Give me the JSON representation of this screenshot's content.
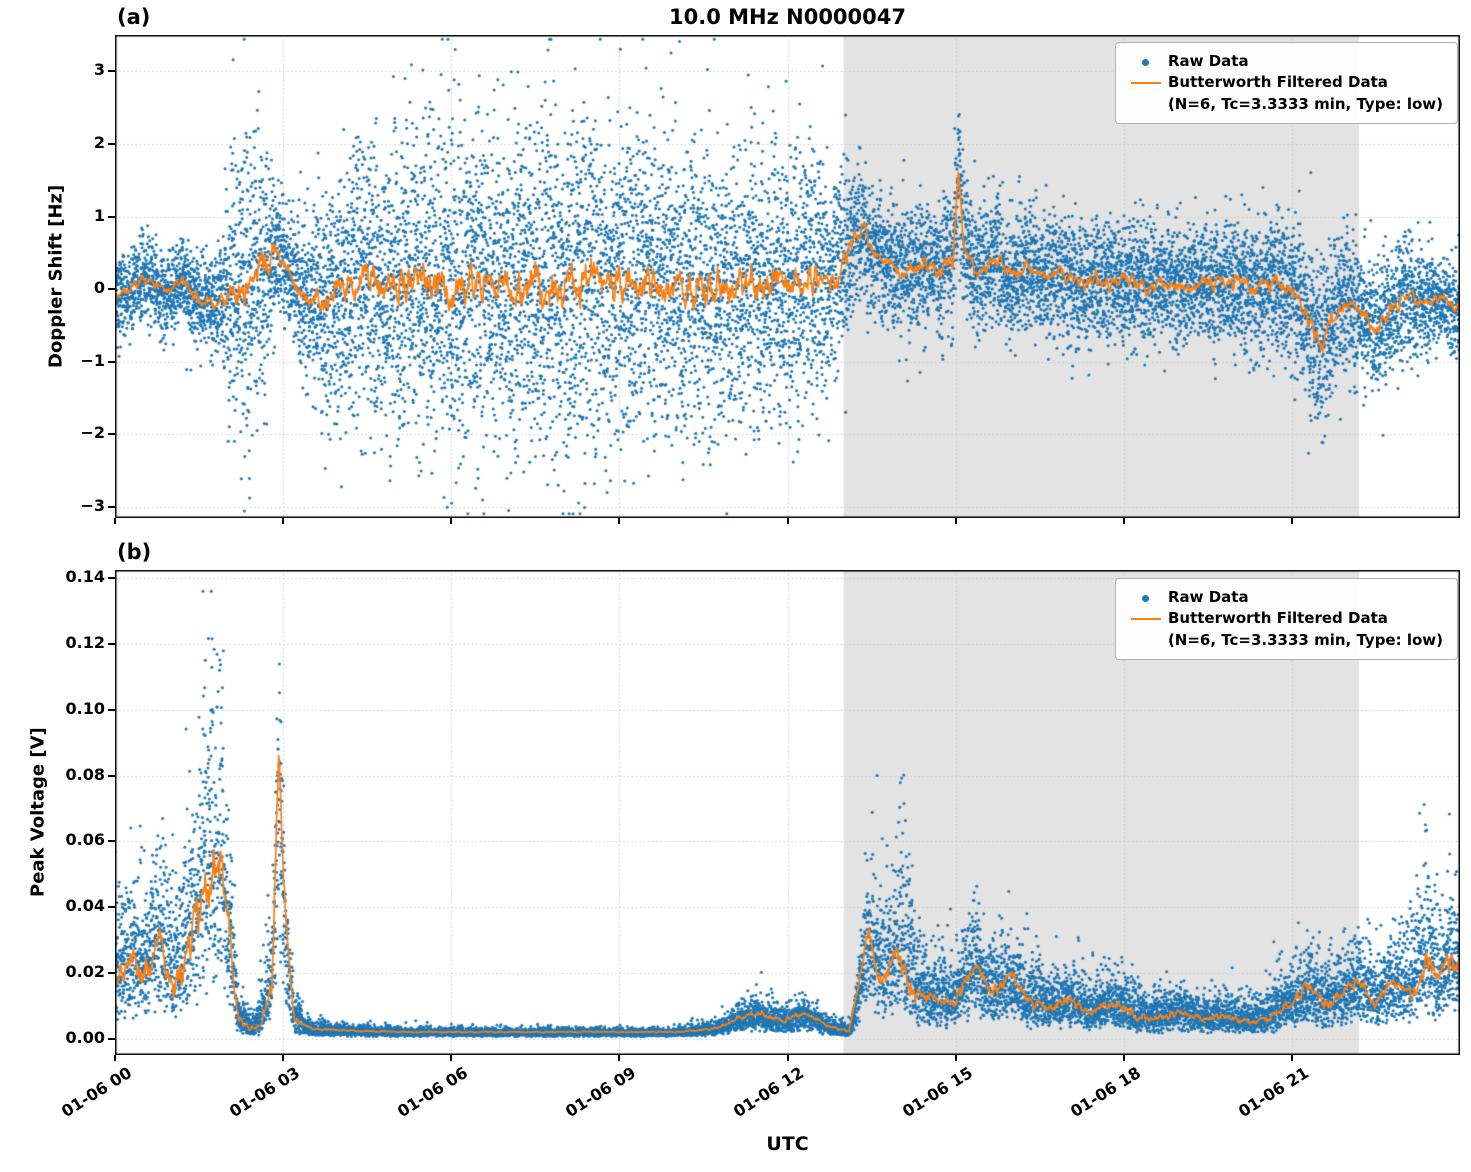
{
  "title": "10.0 MHz N0000047",
  "legend": {
    "raw_label": "Raw Data",
    "filtered_label_line1": "Butterworth Filtered Data",
    "filtered_label_line2": "(N=6, Tc=3.3333 min, Type: low)"
  },
  "colors": {
    "raw": "#1f77b4",
    "filtered": "#ff7f0e",
    "shade": "#e3e3e3",
    "grid": "#c9c9c9",
    "frame": "#000000"
  },
  "chart_data": {
    "type": "scatter+line",
    "x_axis": {
      "label": "UTC",
      "unit": "hours since 01-06 00:00",
      "xlim": [
        0,
        24
      ],
      "ticks": [
        {
          "t": 0,
          "label": "01-06 00"
        },
        {
          "t": 3,
          "label": "01-06 03"
        },
        {
          "t": 6,
          "label": "01-06 06"
        },
        {
          "t": 9,
          "label": "01-06 09"
        },
        {
          "t": 12,
          "label": "01-06 12"
        },
        {
          "t": 15,
          "label": "01-06 15"
        },
        {
          "t": 18,
          "label": "01-06 18"
        },
        {
          "t": 21,
          "label": "01-06 21"
        }
      ]
    },
    "shaded_region_hours": [
      13.0,
      22.2
    ],
    "grid": "dotted",
    "legend_position": "upper right",
    "panels": [
      {
        "id": "a",
        "panel_label": "(a)",
        "ylabel": "Doppler Shift [Hz]",
        "ylim": [
          -3.15,
          3.5
        ],
        "yticks": [
          {
            "v": 3,
            "label": "3"
          },
          {
            "v": 2,
            "label": "2"
          },
          {
            "v": 1,
            "label": "1"
          },
          {
            "v": 0,
            "label": "0"
          },
          {
            "v": -1,
            "label": "−1"
          },
          {
            "v": -2,
            "label": "−2"
          },
          {
            "v": -3,
            "label": "−3"
          }
        ],
        "model": "symmetric",
        "n_points": 14000,
        "filtered_control": [
          [
            0,
            -0.15
          ],
          [
            0.3,
            0.05
          ],
          [
            0.6,
            0.15
          ],
          [
            0.9,
            -0.05
          ],
          [
            1.2,
            0.1
          ],
          [
            1.5,
            -0.15
          ],
          [
            1.8,
            -0.2
          ],
          [
            2.1,
            0
          ],
          [
            2.4,
            0.15
          ],
          [
            2.7,
            0.35
          ],
          [
            2.9,
            0.5
          ],
          [
            3.1,
            0.25
          ],
          [
            3.4,
            -0.1
          ],
          [
            3.7,
            -0.2
          ],
          [
            4,
            -0.05
          ],
          [
            4.5,
            0.1
          ],
          [
            5,
            0
          ],
          [
            5.5,
            0.1
          ],
          [
            6,
            -0.05
          ],
          [
            6.5,
            0.1
          ],
          [
            7,
            0
          ],
          [
            7.5,
            0.1
          ],
          [
            8,
            0
          ],
          [
            8.5,
            0.1
          ],
          [
            9,
            0.05
          ],
          [
            9.5,
            0.1
          ],
          [
            10,
            0
          ],
          [
            10.5,
            0.05
          ],
          [
            11,
            0
          ],
          [
            11.5,
            0.1
          ],
          [
            12,
            0.05
          ],
          [
            12.5,
            0.1
          ],
          [
            12.9,
            0.2
          ],
          [
            13.2,
            0.7
          ],
          [
            13.35,
            0.9
          ],
          [
            13.5,
            0.55
          ],
          [
            13.8,
            0.35
          ],
          [
            14.1,
            0.25
          ],
          [
            14.4,
            0.35
          ],
          [
            14.7,
            0.25
          ],
          [
            14.95,
            0.4
          ],
          [
            15.05,
            1.55
          ],
          [
            15.15,
            0.5
          ],
          [
            15.4,
            0.2
          ],
          [
            15.7,
            0.45
          ],
          [
            16,
            0.15
          ],
          [
            16.3,
            0.35
          ],
          [
            16.6,
            0.1
          ],
          [
            16.9,
            0.25
          ],
          [
            17.2,
            0.05
          ],
          [
            17.5,
            0.15
          ],
          [
            17.8,
            0.05
          ],
          [
            18.1,
            0.15
          ],
          [
            18.4,
            0
          ],
          [
            18.7,
            0.1
          ],
          [
            19,
            0
          ],
          [
            19.3,
            0.1
          ],
          [
            19.6,
            0.05
          ],
          [
            20,
            0.1
          ],
          [
            20.4,
            0
          ],
          [
            20.7,
            0.1
          ],
          [
            21,
            -0.05
          ],
          [
            21.3,
            -0.4
          ],
          [
            21.5,
            -0.8
          ],
          [
            21.7,
            -0.5
          ],
          [
            21.9,
            -0.2
          ],
          [
            22.2,
            -0.3
          ],
          [
            22.5,
            -0.6
          ],
          [
            22.8,
            -0.25
          ],
          [
            23.1,
            -0.1
          ],
          [
            23.4,
            -0.2
          ],
          [
            23.7,
            -0.1
          ],
          [
            24,
            -0.3
          ]
        ],
        "sigma_control": [
          [
            0,
            0.28
          ],
          [
            0.5,
            0.3
          ],
          [
            1,
            0.28
          ],
          [
            1.5,
            0.3
          ],
          [
            1.9,
            0.35
          ],
          [
            2.1,
            0.9
          ],
          [
            2.4,
            1.15
          ],
          [
            2.7,
            0.9
          ],
          [
            2.9,
            0.45
          ],
          [
            3.1,
            0.4
          ],
          [
            3.4,
            0.6
          ],
          [
            3.8,
            0.85
          ],
          [
            4.2,
            1.0
          ],
          [
            5,
            1.05
          ],
          [
            6,
            1.15
          ],
          [
            7,
            1.1
          ],
          [
            8,
            1.15
          ],
          [
            9,
            1.1
          ],
          [
            10,
            1.05
          ],
          [
            11,
            1.0
          ],
          [
            12,
            0.9
          ],
          [
            12.6,
            0.85
          ],
          [
            13,
            0.6
          ],
          [
            13.4,
            0.45
          ],
          [
            13.8,
            0.4
          ],
          [
            14.2,
            0.45
          ],
          [
            14.6,
            0.4
          ],
          [
            15,
            0.5
          ],
          [
            15.5,
            0.45
          ],
          [
            16,
            0.42
          ],
          [
            16.5,
            0.4
          ],
          [
            17,
            0.42
          ],
          [
            17.5,
            0.4
          ],
          [
            18,
            0.45
          ],
          [
            18.5,
            0.4
          ],
          [
            19,
            0.42
          ],
          [
            19.5,
            0.4
          ],
          [
            20,
            0.45
          ],
          [
            20.5,
            0.45
          ],
          [
            21,
            0.5
          ],
          [
            21.5,
            0.6
          ],
          [
            22,
            0.5
          ],
          [
            22.5,
            0.45
          ],
          [
            23,
            0.4
          ],
          [
            23.5,
            0.32
          ],
          [
            24,
            0.3
          ]
        ]
      },
      {
        "id": "b",
        "panel_label": "(b)",
        "ylabel": "Peak Voltage [V]",
        "ylim": [
          -0.005,
          0.1425
        ],
        "yticks": [
          {
            "v": 0.14,
            "label": "0.14"
          },
          {
            "v": 0.12,
            "label": "0.12"
          },
          {
            "v": 0.1,
            "label": "0.10"
          },
          {
            "v": 0.08,
            "label": "0.08"
          },
          {
            "v": 0.06,
            "label": "0.06"
          },
          {
            "v": 0.04,
            "label": "0.04"
          },
          {
            "v": 0.02,
            "label": "0.02"
          },
          {
            "v": 0.0,
            "label": "0.00"
          }
        ],
        "model": "positive",
        "n_points": 13000,
        "filtered_control": [
          [
            0,
            0.017
          ],
          [
            0.3,
            0.025
          ],
          [
            0.5,
            0.018
          ],
          [
            0.8,
            0.03
          ],
          [
            1,
            0.014
          ],
          [
            1.2,
            0.02
          ],
          [
            1.5,
            0.04
          ],
          [
            1.7,
            0.048
          ],
          [
            1.9,
            0.055
          ],
          [
            2.05,
            0.03
          ],
          [
            2.2,
            0.006
          ],
          [
            2.4,
            0.003
          ],
          [
            2.6,
            0.004
          ],
          [
            2.8,
            0.015
          ],
          [
            2.92,
            0.085
          ],
          [
            3.05,
            0.035
          ],
          [
            3.2,
            0.006
          ],
          [
            3.5,
            0.003
          ],
          [
            4,
            0.0025
          ],
          [
            5,
            0.002
          ],
          [
            6,
            0.002
          ],
          [
            7,
            0.002
          ],
          [
            8,
            0.002
          ],
          [
            9,
            0.002
          ],
          [
            10,
            0.002
          ],
          [
            10.7,
            0.003
          ],
          [
            11.1,
            0.006
          ],
          [
            11.5,
            0.008
          ],
          [
            11.9,
            0.005
          ],
          [
            12.3,
            0.008
          ],
          [
            12.7,
            0.004
          ],
          [
            13.1,
            0.002
          ],
          [
            13.45,
            0.033
          ],
          [
            13.65,
            0.018
          ],
          [
            13.95,
            0.028
          ],
          [
            14.25,
            0.014
          ],
          [
            14.6,
            0.012
          ],
          [
            15,
            0.011
          ],
          [
            15.35,
            0.024
          ],
          [
            15.65,
            0.013
          ],
          [
            15.95,
            0.02
          ],
          [
            16.3,
            0.011
          ],
          [
            16.7,
            0.009
          ],
          [
            17,
            0.012
          ],
          [
            17.4,
            0.008
          ],
          [
            17.8,
            0.011
          ],
          [
            18.2,
            0.007
          ],
          [
            18.6,
            0.006
          ],
          [
            19,
            0.008
          ],
          [
            19.4,
            0.006
          ],
          [
            19.8,
            0.007
          ],
          [
            20.2,
            0.005
          ],
          [
            20.6,
            0.006
          ],
          [
            21,
            0.011
          ],
          [
            21.3,
            0.016
          ],
          [
            21.6,
            0.01
          ],
          [
            21.9,
            0.014
          ],
          [
            22.2,
            0.018
          ],
          [
            22.5,
            0.011
          ],
          [
            22.8,
            0.018
          ],
          [
            23.1,
            0.013
          ],
          [
            23.4,
            0.022
          ],
          [
            23.6,
            0.016
          ],
          [
            23.8,
            0.024
          ],
          [
            24,
            0.02
          ]
        ],
        "sigma_control": [
          [
            0,
            0.02
          ],
          [
            0.5,
            0.022
          ],
          [
            1,
            0.026
          ],
          [
            1.4,
            0.03
          ],
          [
            1.6,
            0.055
          ],
          [
            1.8,
            0.045
          ],
          [
            2,
            0.035
          ],
          [
            2.2,
            0.006
          ],
          [
            2.5,
            0.003
          ],
          [
            2.8,
            0.02
          ],
          [
            2.92,
            0.028
          ],
          [
            3.1,
            0.008
          ],
          [
            3.4,
            0.002
          ],
          [
            4,
            0.0015
          ],
          [
            6,
            0.001
          ],
          [
            8,
            0.001
          ],
          [
            10,
            0.001
          ],
          [
            10.8,
            0.002
          ],
          [
            11.3,
            0.004
          ],
          [
            11.8,
            0.004
          ],
          [
            12.3,
            0.004
          ],
          [
            12.8,
            0.002
          ],
          [
            13.2,
            0.002
          ],
          [
            13.5,
            0.022
          ],
          [
            13.8,
            0.018
          ],
          [
            14.1,
            0.03
          ],
          [
            14.4,
            0.012
          ],
          [
            14.8,
            0.01
          ],
          [
            15.2,
            0.012
          ],
          [
            15.6,
            0.013
          ],
          [
            16,
            0.011
          ],
          [
            16.5,
            0.009
          ],
          [
            17,
            0.009
          ],
          [
            17.5,
            0.007
          ],
          [
            18,
            0.008
          ],
          [
            18.5,
            0.006
          ],
          [
            19,
            0.006
          ],
          [
            19.5,
            0.005
          ],
          [
            20,
            0.005
          ],
          [
            20.5,
            0.006
          ],
          [
            21,
            0.009
          ],
          [
            21.5,
            0.01
          ],
          [
            22,
            0.011
          ],
          [
            22.5,
            0.012
          ],
          [
            23,
            0.014
          ],
          [
            23.4,
            0.025
          ],
          [
            23.7,
            0.018
          ],
          [
            24,
            0.02
          ]
        ]
      }
    ]
  }
}
